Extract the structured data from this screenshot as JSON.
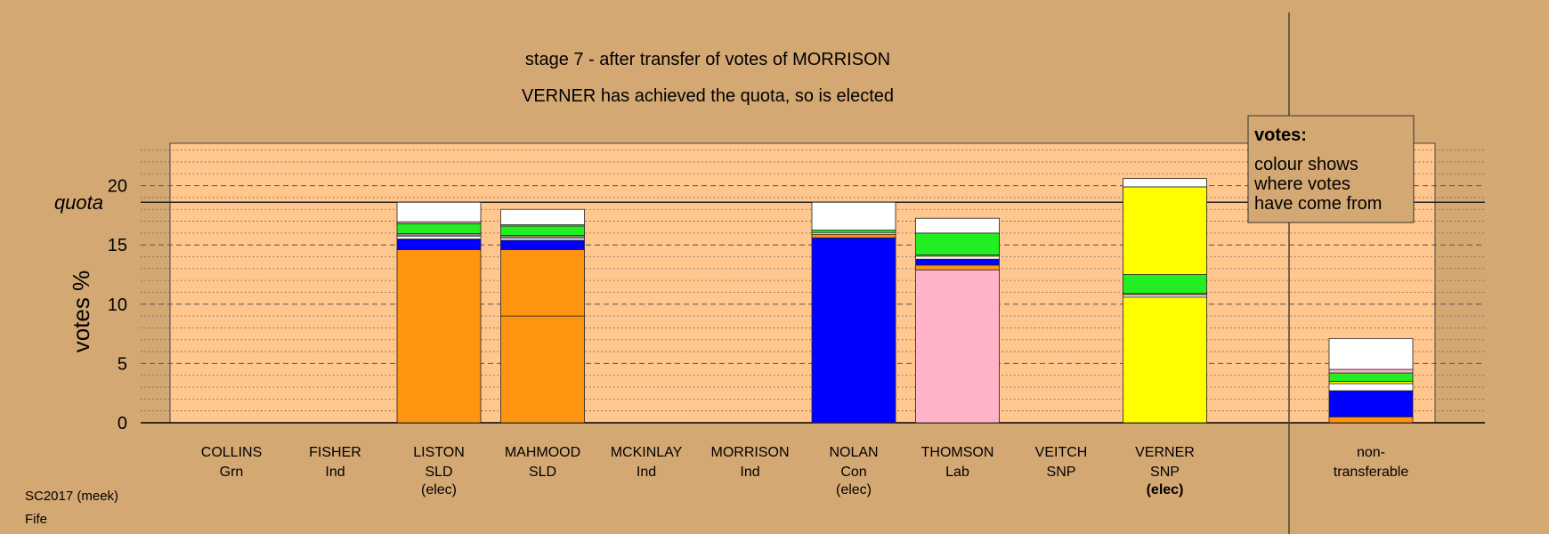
{
  "colors": {
    "page_bg": "#d4a873",
    "plot_bg": "#ffc68e",
    "Lab": "#ffb3c6",
    "SLD": "#ff9410",
    "Con": "#0000ff",
    "SNP": "#ffff00",
    "Grn": "#22ee22",
    "Ind": "#ffffff",
    "nontransferable": "#ffffff"
  },
  "footer": {
    "line1": "SC2017 (meek)",
    "line2": "Fife"
  },
  "legend": {
    "title": "votes:",
    "lines": [
      "colour shows",
      "where votes",
      "have come from"
    ]
  },
  "chart_data": {
    "type": "bar",
    "stacked": true,
    "title_lines": [
      "stage 7 - after transfer of votes of MORRISON",
      "VERNER has achieved the quota, so is elected"
    ],
    "ylabel": "votes %",
    "ylim": [
      0,
      23
    ],
    "yticks": [
      0,
      5,
      10,
      15,
      20
    ],
    "grid": "dashed at multiples of 5, dotted at every 1",
    "quota": {
      "label": "quota",
      "value": 18.6
    },
    "legend_position": "top-right",
    "candidates": [
      {
        "name": "COLLINS",
        "party": "Grn",
        "note": "",
        "segments": []
      },
      {
        "name": "FISHER",
        "party": "Ind",
        "note": "",
        "segments": []
      },
      {
        "name": "LISTON",
        "party": "SLD",
        "note": "(elec)",
        "note_bold": false,
        "segments": [
          {
            "from": "SLD",
            "value": 14.6
          },
          {
            "from": "Con",
            "value": 0.9
          },
          {
            "from": "Ind",
            "value": 0.25
          },
          {
            "from": "SNP",
            "value": 0.1
          },
          {
            "from": "Ind",
            "value": 0.1
          },
          {
            "from": "Grn",
            "value": 0.85
          },
          {
            "from": "Lab",
            "value": 0.15
          },
          {
            "from": "Ind",
            "value": 1.65
          }
        ]
      },
      {
        "name": "MAHMOOD",
        "party": "SLD",
        "note": "",
        "segments": [
          {
            "from": "SLD",
            "value": 9.0
          },
          {
            "from": "SLD",
            "value": 5.6
          },
          {
            "from": "Con",
            "value": 0.8
          },
          {
            "from": "Ind",
            "value": 0.2
          },
          {
            "from": "SNP",
            "value": 0.1
          },
          {
            "from": "Ind",
            "value": 0.1
          },
          {
            "from": "Grn",
            "value": 0.8
          },
          {
            "from": "Lab",
            "value": 0.1
          },
          {
            "from": "Ind",
            "value": 1.3
          }
        ]
      },
      {
        "name": "MCKINLAY",
        "party": "Ind",
        "note": "",
        "segments": []
      },
      {
        "name": "MORRISON",
        "party": "Ind",
        "note": "",
        "segments": []
      },
      {
        "name": "NOLAN",
        "party": "Con",
        "note": "(elec)",
        "note_bold": false,
        "segments": [
          {
            "from": "Con",
            "value": 15.6
          },
          {
            "from": "SLD",
            "value": 0.3
          },
          {
            "from": "Ind",
            "value": 0.15
          },
          {
            "from": "Grn",
            "value": 0.2
          },
          {
            "from": "Ind",
            "value": 2.35
          }
        ]
      },
      {
        "name": "THOMSON",
        "party": "Lab",
        "note": "",
        "segments": [
          {
            "from": "Lab",
            "value": 12.9
          },
          {
            "from": "SLD",
            "value": 0.4
          },
          {
            "from": "Con",
            "value": 0.5
          },
          {
            "from": "Ind",
            "value": 0.25
          },
          {
            "from": "SNP",
            "value": 0.1
          },
          {
            "from": "Grn",
            "value": 1.85
          },
          {
            "from": "Ind",
            "value": 1.25
          }
        ]
      },
      {
        "name": "VEITCH",
        "party": "SNP",
        "note": "",
        "segments": []
      },
      {
        "name": "VERNER",
        "party": "SNP",
        "note": "(elec)",
        "note_bold": true,
        "segments": [
          {
            "from": "SNP",
            "value": 10.6
          },
          {
            "from": "Ind",
            "value": 0.2
          },
          {
            "from": "SLD",
            "value": 0.1
          },
          {
            "from": "Grn",
            "value": 1.6
          },
          {
            "from": "SNP",
            "value": 7.4
          },
          {
            "from": "Ind",
            "value": 0.7
          }
        ]
      }
    ],
    "nontransferable": {
      "label_lines": [
        "non-",
        "transferable"
      ],
      "segments": [
        {
          "from": "SLD",
          "value": 0.5
        },
        {
          "from": "Con",
          "value": 2.2
        },
        {
          "from": "Ind",
          "value": 0.6
        },
        {
          "from": "SNP",
          "value": 0.2
        },
        {
          "from": "Grn",
          "value": 0.7
        },
        {
          "from": "Lab",
          "value": 0.3
        },
        {
          "from": "Ind",
          "value": 2.6
        }
      ]
    }
  }
}
